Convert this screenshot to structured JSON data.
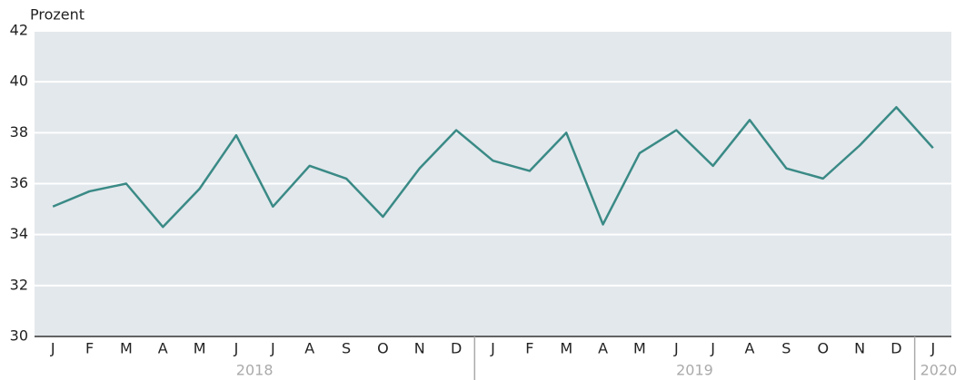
{
  "chart_data": {
    "type": "line",
    "y_label": "Prozent",
    "categories": [
      "J",
      "F",
      "M",
      "A",
      "M",
      "J",
      "J",
      "A",
      "S",
      "O",
      "N",
      "D",
      "J",
      "F",
      "M",
      "A",
      "M",
      "J",
      "J",
      "A",
      "S",
      "O",
      "N",
      "D",
      "J"
    ],
    "category_groups": [
      {
        "label": "2018",
        "months": 12
      },
      {
        "label": "2019",
        "months": 12
      },
      {
        "label": "2020",
        "months": 1
      }
    ],
    "series": [
      {
        "name": "Prozent",
        "color": "#3a8a86",
        "values": [
          35.1,
          35.7,
          36.0,
          34.3,
          35.8,
          37.9,
          35.1,
          36.7,
          36.2,
          34.7,
          36.6,
          38.1,
          36.9,
          36.5,
          38.0,
          34.4,
          37.2,
          38.1,
          36.7,
          38.5,
          36.6,
          36.2,
          37.5,
          39.0,
          37.4
        ]
      }
    ],
    "ylim": [
      30,
      42
    ],
    "yticks": [
      30,
      32,
      34,
      36,
      38,
      40,
      42
    ],
    "grid": true
  }
}
